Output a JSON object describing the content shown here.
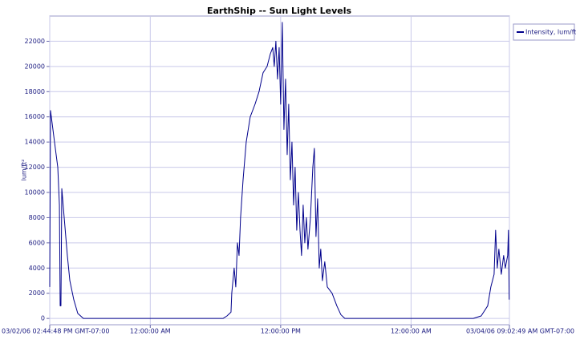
{
  "chart_data": {
    "type": "line",
    "title": "EarthShip -- Sun Light Levels",
    "y_label": "lum/ft²",
    "x": [
      0,
      0.07,
      0.22,
      0.44,
      0.74,
      0.89,
      0.96,
      1.03,
      1.11,
      1.33,
      1.62,
      1.85,
      2.21,
      2.58,
      3.1,
      15.94,
      16.31,
      16.68,
      16.75,
      16.97,
      17.12,
      17.27,
      17.42,
      17.56,
      17.79,
      18.08,
      18.45,
      18.89,
      19.26,
      19.63,
      20.0,
      20.3,
      20.52,
      20.66,
      20.81,
      20.96,
      21.11,
      21.25,
      21.4,
      21.55,
      21.7,
      21.85,
      21.99,
      22.14,
      22.29,
      22.44,
      22.58,
      22.73,
      22.88,
      23.03,
      23.17,
      23.32,
      23.47,
      23.62,
      23.76,
      23.99,
      24.21,
      24.35,
      24.5,
      24.65,
      24.8,
      24.94,
      25.09,
      25.31,
      25.54,
      25.98,
      26.42,
      26.79,
      27.16,
      38.97,
      39.7,
      40.3,
      40.59,
      40.89,
      41.03,
      41.18,
      41.33,
      41.55,
      41.77,
      41.92,
      42.14,
      42.21,
      42.28
    ],
    "series": [
      {
        "name": "Intensity, lum/ft²",
        "color": "#00008b",
        "values": [
          2500,
          16500,
          15500,
          14000,
          12000,
          9000,
          1000,
          1000,
          10300,
          8000,
          5000,
          3000,
          1500,
          400,
          0,
          0,
          200,
          500,
          2000,
          4000,
          2500,
          6000,
          5000,
          8000,
          11000,
          14000,
          16000,
          17000,
          18000,
          19500,
          20000,
          21000,
          21500,
          20000,
          22000,
          19000,
          21500,
          17000,
          23500,
          15000,
          19000,
          13000,
          17000,
          11000,
          14000,
          9000,
          12000,
          7000,
          10000,
          7000,
          5000,
          9000,
          6000,
          8000,
          5500,
          8000,
          12000,
          13500,
          6500,
          9500,
          4000,
          5500,
          3000,
          4500,
          2500,
          2000,
          1000,
          300,
          0,
          0,
          200,
          1000,
          2500,
          3500,
          7000,
          4000,
          5500,
          3500,
          5000,
          4000,
          5000,
          7000,
          1500
        ]
      }
    ],
    "xlim": [
      0,
      42.3
    ],
    "xticks": [
      {
        "value": 0,
        "label": "03/02/06 02:44:48 PM GMT-07:00"
      },
      {
        "value": 9.25,
        "label": "12:00:00 AM"
      },
      {
        "value": 21.25,
        "label": "12:00:00 PM"
      },
      {
        "value": 33.25,
        "label": "12:00:00 AM"
      },
      {
        "value": 42.3,
        "label": "03/04/06 09:02:49 AM GMT-07:00"
      }
    ],
    "ylim": [
      -500,
      24000
    ],
    "yticks": [
      0,
      2000,
      4000,
      6000,
      8000,
      10000,
      12000,
      14000,
      16000,
      18000,
      20000,
      22000
    ],
    "grid": true,
    "legend": "right"
  }
}
